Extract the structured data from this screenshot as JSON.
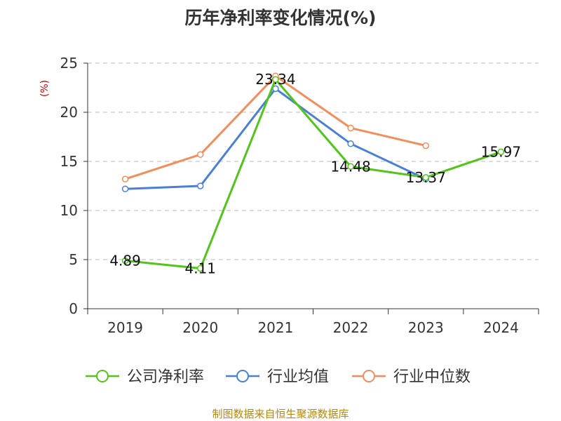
{
  "chart_data": {
    "type": "line",
    "title": "历年净利率变化情况(%)",
    "ylabel": "(%)",
    "xlabel": "",
    "categories": [
      "2019",
      "2020",
      "2021",
      "2022",
      "2023",
      "2024"
    ],
    "ylim": [
      0,
      25
    ],
    "yticks": [
      0,
      5,
      10,
      15,
      20,
      25
    ],
    "grid": true,
    "legend_position": "bottom",
    "series": [
      {
        "name": "公司净利率",
        "color": "#52c41a",
        "values": [
          4.89,
          4.11,
          23.34,
          14.48,
          13.37,
          15.97
        ],
        "data_labels": [
          "4.89",
          "4.11",
          "23.34",
          "14.48",
          "13.37",
          "15.97"
        ]
      },
      {
        "name": "行业均值",
        "color": "#4a7fd8",
        "values": [
          12.2,
          12.5,
          22.4,
          16.8,
          13.2,
          null
        ]
      },
      {
        "name": "行业中位数",
        "color": "#f48c5b",
        "values": [
          13.2,
          15.7,
          23.7,
          18.4,
          16.6,
          null
        ]
      }
    ]
  },
  "source_note": "制图数据来自恒生聚源数据库"
}
